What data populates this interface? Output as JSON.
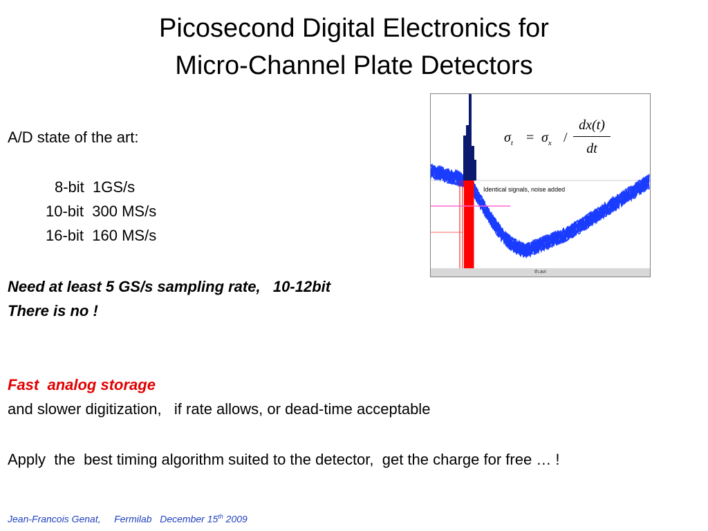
{
  "slide": {
    "title_line1": "Picosecond Digital Electronics for",
    "title_line2": "Micro-Channel Plate Detectors",
    "ad_heading": "A/D state of the art:",
    "specs": [
      {
        "bits": "8-bit",
        "rate": "1GS/s"
      },
      {
        "bits": "10-bit",
        "rate": "300 MS/s"
      },
      {
        "bits": "16-bit",
        "rate": "160 MS/s"
      }
    ],
    "need_line": "Need at least 5 GS/s sampling rate,   10-12bit",
    "there_is_no": "There is no !",
    "fast_storage": "Fast  analog storage",
    "slower_line": "and slower digitization,   if rate allows, or dead-time acceptable",
    "apply_line": "Apply  the  best timing algorithm suited to the detector,  get the charge for free … !",
    "footer_author": "Jean-Francois Genat,",
    "footer_lab": "Fermilab",
    "footer_date_pre": "December 15",
    "footer_date_sup": "th",
    "footer_year": "2009"
  },
  "figure": {
    "label": "Identical signals, noise added",
    "caption": "th.avi",
    "formula_lhs": "σ",
    "formula_lhs_sub": "t",
    "formula_eq": "=",
    "formula_rhs": "σ",
    "formula_rhs_sub": "x",
    "formula_slash": "/",
    "formula_num": "dx(t)",
    "formula_den": "dt",
    "colors": {
      "signal": "#1a3cff",
      "histogram": "#0a1a6e",
      "marker": "#ff0000",
      "threshold": "#ff66cc"
    }
  }
}
